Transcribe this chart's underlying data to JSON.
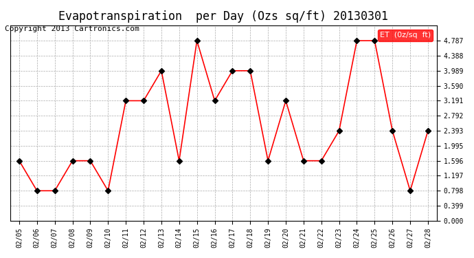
{
  "title": "Evapotranspiration  per Day (Ozs sq/ft) 20130301",
  "copyright": "Copyright 2013 Cartronics.com",
  "legend_label": "ET  (0z/sq  ft)",
  "dates": [
    "02/05",
    "02/06",
    "02/07",
    "02/08",
    "02/09",
    "02/10",
    "02/11",
    "02/12",
    "02/13",
    "02/14",
    "02/15",
    "02/16",
    "02/17",
    "02/18",
    "02/19",
    "02/20",
    "02/21",
    "02/22",
    "02/23",
    "02/24",
    "02/25",
    "02/26",
    "02/27",
    "02/28"
  ],
  "values": [
    1.596,
    0.798,
    0.798,
    1.596,
    1.596,
    0.798,
    3.191,
    3.191,
    3.989,
    1.596,
    4.787,
    3.191,
    3.989,
    3.989,
    1.596,
    3.191,
    1.596,
    1.596,
    2.393,
    4.787,
    4.787,
    2.393,
    0.798,
    2.393
  ],
  "line_color": "red",
  "marker": "D",
  "marker_size": 4,
  "marker_color": "black",
  "ylim": [
    0.0,
    5.186
  ],
  "yticks": [
    0.0,
    0.399,
    0.798,
    1.197,
    1.596,
    1.995,
    2.393,
    2.792,
    3.191,
    3.59,
    3.989,
    4.388,
    4.787
  ],
  "background_color": "#ffffff",
  "grid_color": "#aaaaaa",
  "title_fontsize": 12,
  "copyright_fontsize": 8,
  "legend_bg": "red",
  "legend_text_color": "white"
}
